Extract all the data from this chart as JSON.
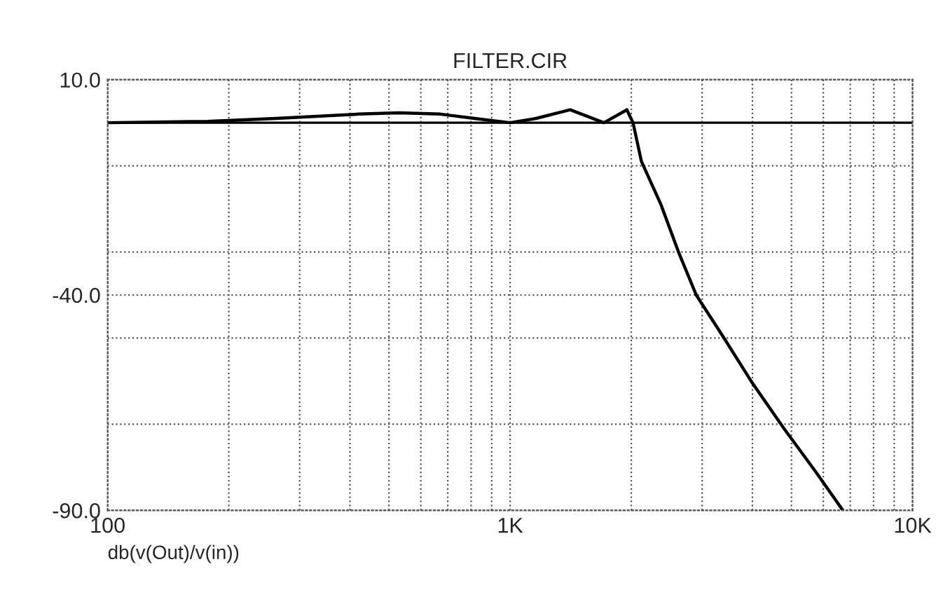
{
  "chart_data": {
    "type": "line",
    "title": "FILTER.CIR",
    "xlabel": "db(v(Out)/v(in))",
    "log": "x",
    "x": [
      100,
      177,
      262,
      419,
      530,
      671,
      816,
      1000,
      1160,
      1410,
      1710,
      1950,
      2020,
      2120,
      2370,
      2620,
      2900,
      3400,
      3970,
      4790,
      5740,
      6710
    ],
    "series": [
      {
        "color": "#000000",
        "values": [
          0,
          0.3,
          1,
          2,
          2.3,
          2,
          1,
          0,
          1,
          3,
          0,
          3,
          0,
          -9,
          -19,
          -30,
          -40,
          -50,
          -60,
          -71,
          -81,
          -90
        ]
      }
    ],
    "xlim": [
      100,
      10000
    ],
    "xticks": [
      {
        "value": 100,
        "label": "100"
      },
      {
        "value": 200,
        "label": null
      },
      {
        "value": 300,
        "label": null
      },
      {
        "value": 400,
        "label": null
      },
      {
        "value": 500,
        "label": null
      },
      {
        "value": 600,
        "label": null
      },
      {
        "value": 700,
        "label": null
      },
      {
        "value": 800,
        "label": null
      },
      {
        "value": 900,
        "label": null
      },
      {
        "value": 1000,
        "label": "1K"
      },
      {
        "value": 2000,
        "label": null
      },
      {
        "value": 3000,
        "label": null
      },
      {
        "value": 4000,
        "label": null
      },
      {
        "value": 5000,
        "label": null
      },
      {
        "value": 6000,
        "label": null
      },
      {
        "value": 7000,
        "label": null
      },
      {
        "value": 8000,
        "label": null
      },
      {
        "value": 9000,
        "label": null
      },
      {
        "value": 10000,
        "label": "10K"
      }
    ],
    "ylim": [
      -90,
      10
    ],
    "yticks": [
      {
        "value": 10,
        "label": "10.0"
      },
      {
        "value": -10,
        "label": null
      },
      {
        "value": -30,
        "label": null
      },
      {
        "value": -40,
        "label": "-40.0"
      },
      {
        "value": -50,
        "label": null
      },
      {
        "value": -70,
        "label": null
      },
      {
        "value": -90,
        "label": "-90.0"
      }
    ],
    "ref_lines": [
      {
        "axis": "y",
        "value": 0,
        "color": "#000000"
      }
    ],
    "grid": true,
    "line_style": "solid"
  }
}
